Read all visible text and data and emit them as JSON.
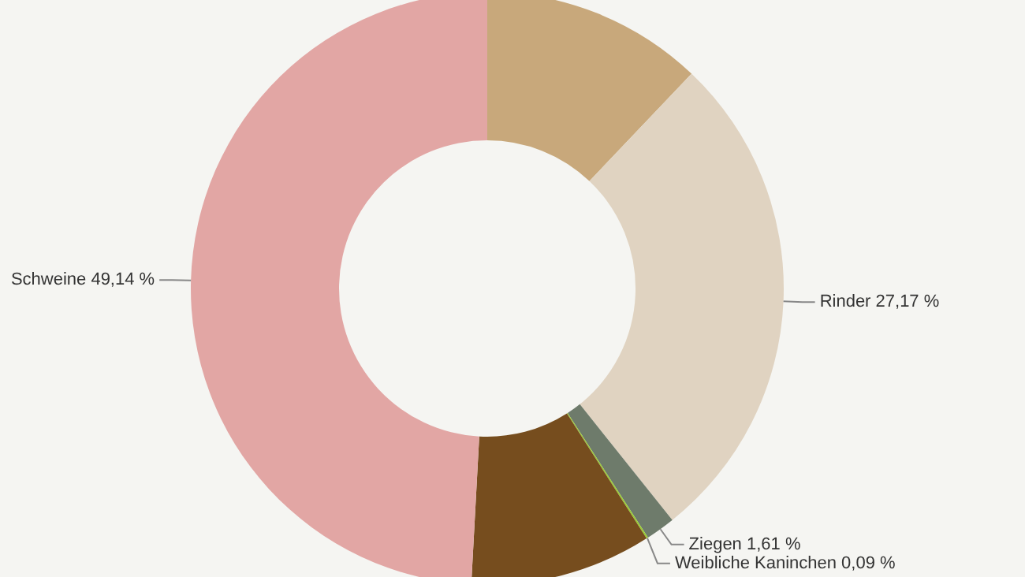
{
  "chart_data": {
    "type": "donut",
    "categories": [
      null,
      "Rinder",
      "Ziegen",
      "Weibliche Kaninchen",
      null,
      "Schweine"
    ],
    "values": [
      12.1,
      27.17,
      1.61,
      0.09,
      9.89,
      49.14
    ],
    "value_labels": [
      null,
      "27,17 %",
      "1,61 %",
      "0,09 %",
      null,
      "49,14 %"
    ],
    "colors": [
      "#c8a87b",
      "#e0d3c1",
      "#6e7b6b",
      "#9acd32",
      "#764d1e",
      "#e2a6a4"
    ],
    "legend": false
  }
}
